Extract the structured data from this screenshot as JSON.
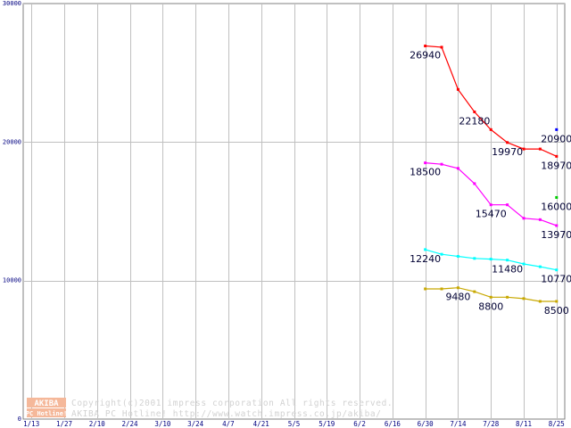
{
  "chart_data": {
    "type": "line",
    "title": "",
    "xlabel": "",
    "ylabel": "",
    "ylim": [
      0,
      30000
    ],
    "grid": true,
    "categories": [
      "1/13",
      "1/20",
      "1/27",
      "2/3",
      "2/10",
      "2/17",
      "2/24",
      "3/3",
      "3/10",
      "3/17",
      "3/24",
      "3/31",
      "4/7",
      "4/14",
      "4/21",
      "4/28",
      "5/5",
      "5/12",
      "5/19",
      "5/26",
      "6/2",
      "6/9",
      "6/16",
      "6/23",
      "6/30",
      "7/7",
      "7/14",
      "7/21",
      "7/28",
      "8/4",
      "8/11",
      "8/18",
      "8/25"
    ],
    "x_tick_labels": [
      "1/13",
      "1/27",
      "2/10",
      "2/24",
      "3/10",
      "3/24",
      "4/7",
      "4/21",
      "5/5",
      "5/19",
      "6/2",
      "6/16",
      "6/30",
      "7/14",
      "7/28",
      "8/11",
      "8/25"
    ],
    "y_ticks": [
      0,
      10000,
      20000,
      30000
    ],
    "series": [
      {
        "color": "#ff0000",
        "points": [
          [
            "6/30",
            26940
          ],
          [
            "7/7",
            26850
          ],
          [
            "7/14",
            23800
          ],
          [
            "7/21",
            22180
          ],
          [
            "7/28",
            20900
          ],
          [
            "8/4",
            19970
          ],
          [
            "8/11",
            19500
          ],
          [
            "8/18",
            19500
          ],
          [
            "8/25",
            18970
          ]
        ]
      },
      {
        "color": "#0000ff",
        "points": [
          [
            "8/25",
            20900
          ]
        ]
      },
      {
        "color": "#ff00ff",
        "points": [
          [
            "6/30",
            18500
          ],
          [
            "7/7",
            18400
          ],
          [
            "7/14",
            18100
          ],
          [
            "7/21",
            17000
          ],
          [
            "7/28",
            15470
          ],
          [
            "8/4",
            15470
          ],
          [
            "8/11",
            14500
          ],
          [
            "8/18",
            14400
          ],
          [
            "8/25",
            13970
          ]
        ]
      },
      {
        "color": "#00cc00",
        "points": [
          [
            "8/25",
            16000
          ]
        ]
      },
      {
        "color": "#00ffff",
        "points": [
          [
            "6/30",
            12240
          ],
          [
            "7/7",
            11900
          ],
          [
            "7/14",
            11750
          ],
          [
            "7/21",
            11600
          ],
          [
            "7/28",
            11550
          ],
          [
            "8/4",
            11480
          ],
          [
            "8/11",
            11200
          ],
          [
            "8/18",
            11000
          ],
          [
            "8/25",
            10770
          ]
        ]
      },
      {
        "color": "#c8a800",
        "points": [
          [
            "6/30",
            9400
          ],
          [
            "7/7",
            9400
          ],
          [
            "7/14",
            9480
          ],
          [
            "7/21",
            9200
          ],
          [
            "7/28",
            8800
          ],
          [
            "8/4",
            8800
          ],
          [
            "8/11",
            8700
          ],
          [
            "8/18",
            8500
          ],
          [
            "8/25",
            8500
          ]
        ]
      }
    ],
    "data_labels": [
      {
        "x": "6/30",
        "y": 26940,
        "text": "26940"
      },
      {
        "x": "7/21",
        "y": 22180,
        "text": "22180"
      },
      {
        "x": "8/4",
        "y": 19970,
        "text": "19970"
      },
      {
        "x": "8/25",
        "y": 20900,
        "text": "20900"
      },
      {
        "x": "8/25",
        "y": 18970,
        "text": "18970"
      },
      {
        "x": "6/30",
        "y": 18500,
        "text": "18500"
      },
      {
        "x": "7/28",
        "y": 15470,
        "text": "15470"
      },
      {
        "x": "8/25",
        "y": 16000,
        "text": "16000"
      },
      {
        "x": "8/25",
        "y": 13970,
        "text": "13970"
      },
      {
        "x": "6/30",
        "y": 12240,
        "text": "12240"
      },
      {
        "x": "8/4",
        "y": 11480,
        "text": "11480"
      },
      {
        "x": "8/25",
        "y": 10770,
        "text": "10770"
      },
      {
        "x": "7/14",
        "y": 9480,
        "text": "9480"
      },
      {
        "x": "7/28",
        "y": 8800,
        "text": "8800"
      },
      {
        "x": "8/25",
        "y": 8500,
        "text": "8500"
      }
    ]
  },
  "watermark": {
    "logo_top": "AKIBA",
    "logo_bottom": "PC Hotline!",
    "line1": "Copyright(c)2001 impress corporation All rights reserved.",
    "line2": "AKIBA PC Hotline!  http://www.watch.impress.co.jp/akiba/"
  },
  "colors": {
    "grid": "#c0c0c0",
    "axis": "#808080",
    "logo_bg": "#f5b89a",
    "logo_text": "#ffffff"
  }
}
